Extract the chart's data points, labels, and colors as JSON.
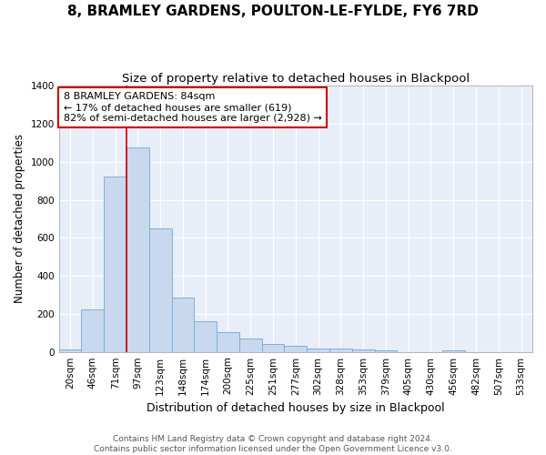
{
  "title": "8, BRAMLEY GARDENS, POULTON-LE-FYLDE, FY6 7RD",
  "subtitle": "Size of property relative to detached houses in Blackpool",
  "xlabel": "Distribution of detached houses by size in Blackpool",
  "ylabel": "Number of detached properties",
  "categories": [
    "20sqm",
    "46sqm",
    "71sqm",
    "97sqm",
    "123sqm",
    "148sqm",
    "174sqm",
    "200sqm",
    "225sqm",
    "251sqm",
    "277sqm",
    "302sqm",
    "328sqm",
    "353sqm",
    "379sqm",
    "405sqm",
    "430sqm",
    "456sqm",
    "482sqm",
    "507sqm",
    "533sqm"
  ],
  "values": [
    15,
    225,
    920,
    1075,
    650,
    285,
    160,
    105,
    70,
    40,
    30,
    20,
    20,
    15,
    10,
    0,
    0,
    10,
    0,
    0,
    0
  ],
  "bar_color": "#c8d8ee",
  "bar_edgecolor": "#7fafd4",
  "vline_x": 2.5,
  "vline_color": "#cc0000",
  "annotation_text": "8 BRAMLEY GARDENS: 84sqm\n← 17% of detached houses are smaller (619)\n82% of semi-detached houses are larger (2,928) →",
  "annotation_box_facecolor": "#ffffff",
  "annotation_box_edgecolor": "#cc0000",
  "ylim": [
    0,
    1400
  ],
  "yticks": [
    0,
    200,
    400,
    600,
    800,
    1000,
    1200,
    1400
  ],
  "footnote": "Contains HM Land Registry data © Crown copyright and database right 2024.\nContains public sector information licensed under the Open Government Licence v3.0.",
  "background_color": "#ffffff",
  "plot_background": "#e8eef8",
  "title_fontsize": 11,
  "subtitle_fontsize": 9.5,
  "xlabel_fontsize": 9,
  "ylabel_fontsize": 8.5,
  "tick_fontsize": 7.5,
  "footnote_fontsize": 6.5,
  "annotation_fontsize": 8
}
